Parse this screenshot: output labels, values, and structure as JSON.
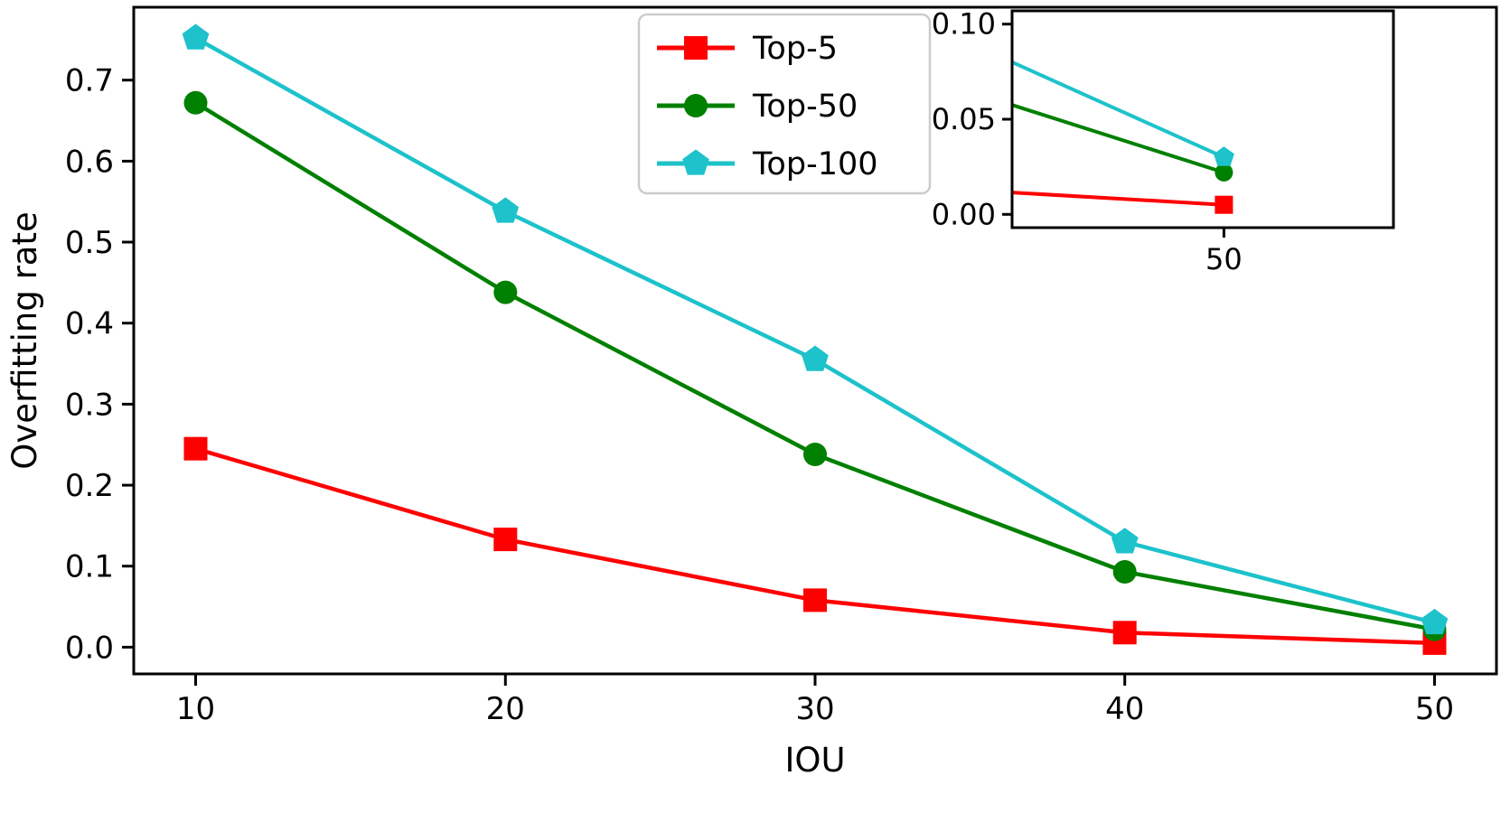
{
  "figure": {
    "background": "#ffffff"
  },
  "chart_data": {
    "type": "line",
    "title": "",
    "xlabel": "IOU",
    "ylabel": "Overfitting rate",
    "grid": false,
    "legend_position": "upper center",
    "x": [
      10,
      20,
      30,
      40,
      50
    ],
    "xlim": [
      8,
      52
    ],
    "ylim": [
      -0.033,
      0.79
    ],
    "xtick_values": [
      10,
      20,
      30,
      40,
      50
    ],
    "xtick_labels": [
      "10",
      "20",
      "30",
      "40",
      "50"
    ],
    "ytick_values": [
      0.0,
      0.1,
      0.2,
      0.3,
      0.4,
      0.5,
      0.6,
      0.7
    ],
    "ytick_labels": [
      "0.0",
      "0.1",
      "0.2",
      "0.3",
      "0.4",
      "0.5",
      "0.6",
      "0.7"
    ],
    "series": [
      {
        "name": "Top-5",
        "color": "#ff0000",
        "marker": "square",
        "values": [
          0.245,
          0.133,
          0.058,
          0.018,
          0.005
        ]
      },
      {
        "name": "Top-50",
        "color": "#008000",
        "marker": "circle",
        "values": [
          0.672,
          0.438,
          0.238,
          0.093,
          0.022
        ]
      },
      {
        "name": "Top-100",
        "color": "#1dc2cb",
        "marker": "pentagon",
        "values": [
          0.752,
          0.538,
          0.355,
          0.13,
          0.03
        ]
      }
    ],
    "inset": {
      "position": "upper right",
      "description": "zoom on IOU=50 region",
      "xlim": [
        45,
        54
      ],
      "ylim": [
        -0.007,
        0.107
      ],
      "xtick_values": [
        50
      ],
      "xtick_labels": [
        "50"
      ],
      "ytick_values": [
        0.0,
        0.05,
        0.1
      ],
      "ytick_labels": [
        "0.00",
        "0.05",
        "0.10"
      ]
    }
  }
}
